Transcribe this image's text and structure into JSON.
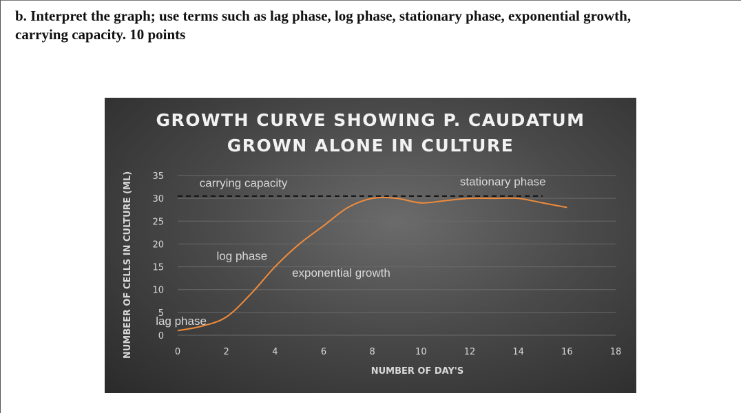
{
  "question": {
    "line1": "b. Interpret the graph; use terms such as lag phase, log phase, stationary phase, exponential growth,",
    "line2": "carrying capacity. 10 points"
  },
  "chart_data": {
    "type": "line",
    "title_lines": [
      "GROWTH CURVE SHOWING P. CAUDATUM",
      "GROWN ALONE IN CULTURE"
    ],
    "xlabel": "NUMBER OF DAY'S",
    "ylabel": "NUMBEER OF CELLS IN CULTURE (ML)",
    "xlim": [
      0,
      18
    ],
    "ylim": [
      0,
      35
    ],
    "x_ticks": [
      0,
      2,
      4,
      6,
      8,
      10,
      12,
      14,
      16,
      18
    ],
    "y_ticks": [
      0,
      5,
      10,
      15,
      20,
      25,
      30,
      35
    ],
    "grid": true,
    "series": [
      {
        "x": [
          0,
          1,
          2,
          3,
          4,
          5,
          6,
          7,
          8,
          9,
          10,
          11,
          12,
          13,
          14,
          15,
          16
        ],
        "values": [
          1,
          2,
          4,
          9,
          15,
          20,
          24,
          28,
          30,
          30,
          29,
          29.5,
          30,
          30,
          30,
          29,
          28
        ]
      }
    ],
    "reference_line": {
      "y": 30.5,
      "x_range": [
        0,
        15
      ],
      "style": "dashed"
    },
    "annotations": [
      {
        "text": "carrying capacity",
        "x": 0.9,
        "y": 32.5
      },
      {
        "text": "stationary phase",
        "x": 11.6,
        "y": 32.8
      },
      {
        "text": "log phase",
        "x": 1.6,
        "y": 16.5
      },
      {
        "text": "exponential growth",
        "x": 4.7,
        "y": 12.8
      },
      {
        "text": "lag phase",
        "x": -0.9,
        "y": 2.3
      }
    ],
    "colors": {
      "line": "#f08c3c",
      "text": "#d9d9d9",
      "grid": "#6a6a6a",
      "reference": "#111111"
    }
  }
}
